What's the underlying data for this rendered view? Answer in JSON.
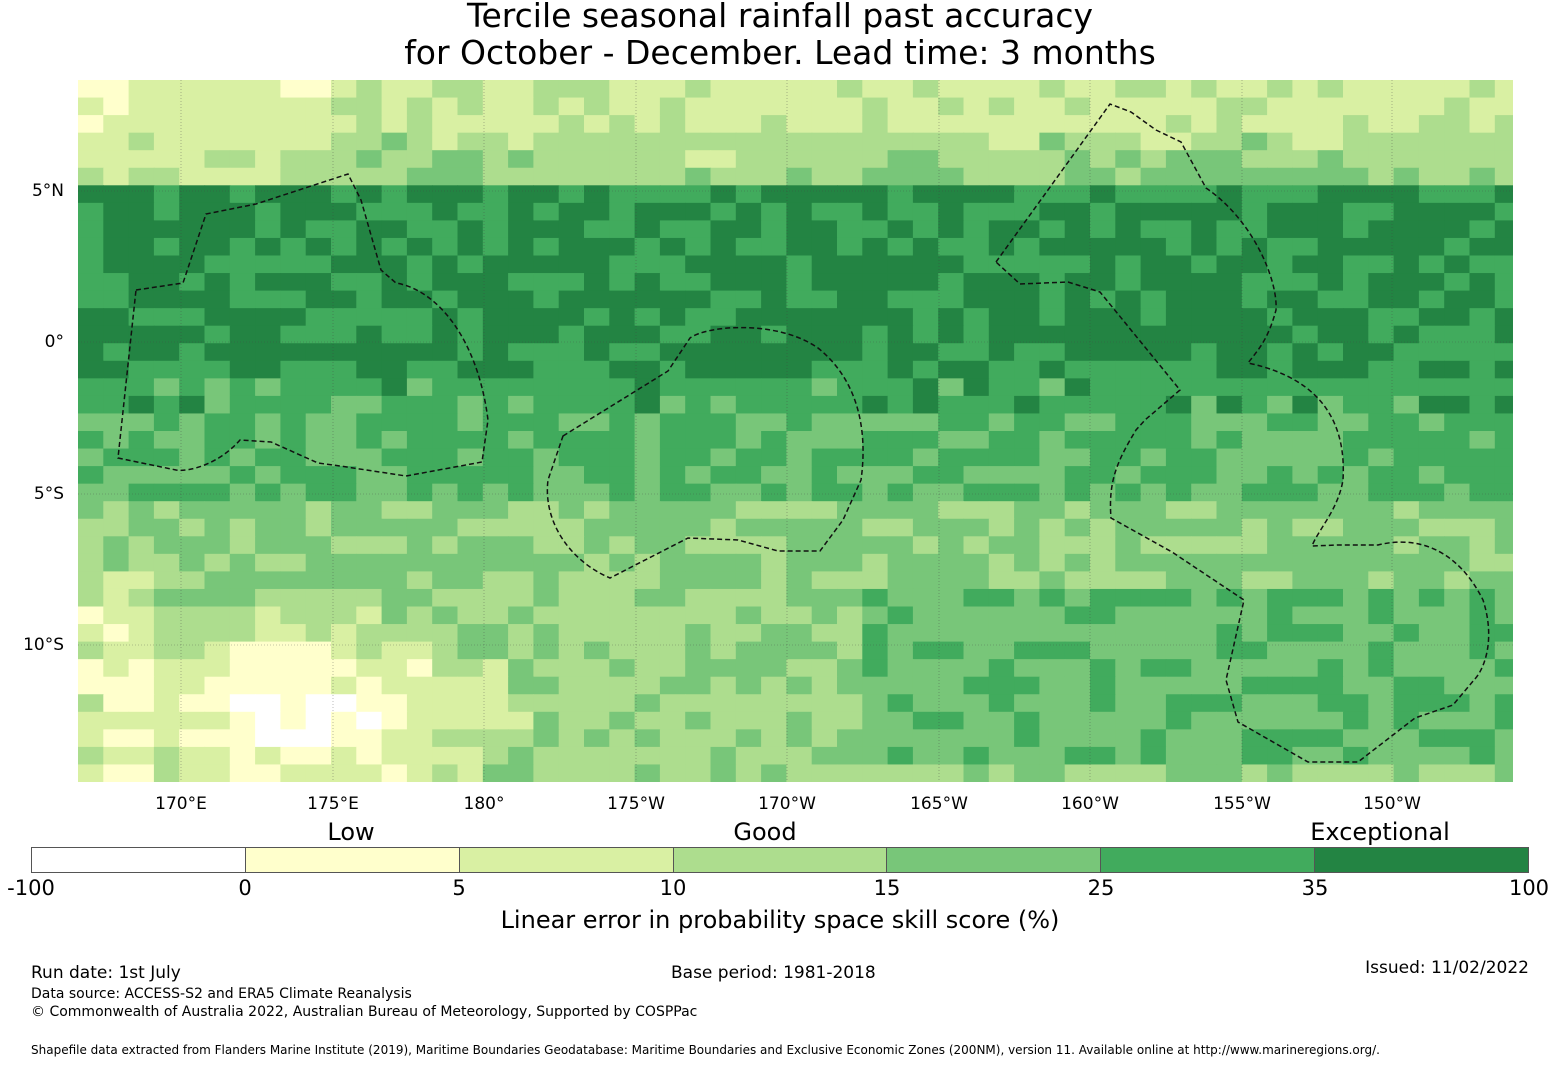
{
  "title": {
    "line1": "Tercile seasonal rainfall past accuracy",
    "line2": "for October - December. Lead time: 3 months"
  },
  "map": {
    "lon_labels": [
      "170°E",
      "175°E",
      "180°",
      "175°W",
      "170°W",
      "165°W",
      "160°W",
      "155°W",
      "150°W"
    ],
    "lat_labels": [
      "5°N",
      "0°",
      "5°S",
      "10°S"
    ],
    "skill_colors": [
      "#ffffff",
      "#ffffcc",
      "#d9f0a3",
      "#addd8e",
      "#78c679",
      "#41ab5d",
      "#238443"
    ]
  },
  "legend": {
    "categories": [
      "Low",
      "Good",
      "Exceptional"
    ],
    "ticks": [
      "-100",
      "0",
      "5",
      "10",
      "15",
      "25",
      "35",
      "100"
    ],
    "title": "Linear error in probability space skill score (%)"
  },
  "footer": {
    "run_date": "Run date: 1st July",
    "base_period": "Base period: 1981-2018",
    "issued": "Issued: 11/02/2022",
    "data_source": "Data source: ACCESS-S2 and ERA5 Climate Reanalysis",
    "copyright": "© Commonwealth of Australia 2022, Australian Bureau of Meteorology, Supported by COSPPac",
    "shapefile": "Shapefile data extracted from Flanders Marine Institute (2019), Maritime Boundaries Geodatabase: Maritime Boundaries and Exclusive Economic Zones (200NM), version 11. Available online at http://www.marineregions.org/."
  }
}
